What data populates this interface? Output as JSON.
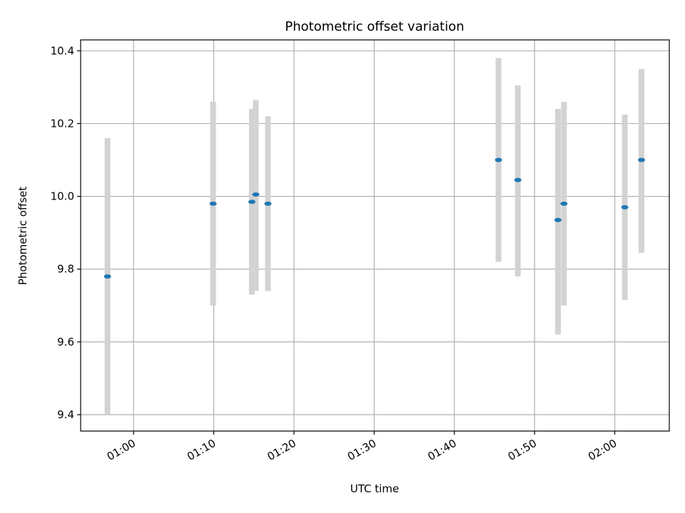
{
  "chart_data": {
    "type": "scatter",
    "title": "Photometric offset variation",
    "xlabel": "UTC time",
    "ylabel": "Photometric offset",
    "x_ticks": [
      "01:00",
      "01:10",
      "01:20",
      "01:30",
      "01:40",
      "01:50",
      "02:00"
    ],
    "y_ticks": [
      "9.4",
      "9.6",
      "9.8",
      "10.0",
      "10.2",
      "10.4"
    ],
    "xlim": [
      "00:53:24",
      "02:06:48"
    ],
    "ylim": [
      9.355,
      10.43
    ],
    "grid": true,
    "legend": "none",
    "colors": {
      "point": "#1f77b4",
      "errorbar": "#d3d3d3",
      "grid": "#b0b0b0"
    },
    "series": [
      {
        "points": [
          {
            "x": "00:56:45",
            "y": 9.78,
            "err_low": 9.4,
            "err_high": 10.16
          },
          {
            "x": "01:09:55",
            "y": 9.98,
            "err_low": 9.7,
            "err_high": 10.26
          },
          {
            "x": "01:14:45",
            "y": 9.985,
            "err_low": 9.73,
            "err_high": 10.24
          },
          {
            "x": "01:15:15",
            "y": 10.005,
            "err_low": 9.74,
            "err_high": 10.265
          },
          {
            "x": "01:16:45",
            "y": 9.98,
            "err_low": 9.74,
            "err_high": 10.22
          },
          {
            "x": "01:45:30",
            "y": 10.1,
            "err_low": 9.82,
            "err_high": 10.38
          },
          {
            "x": "01:47:55",
            "y": 10.045,
            "err_low": 9.78,
            "err_high": 10.305
          },
          {
            "x": "01:52:55",
            "y": 9.935,
            "err_low": 9.62,
            "err_high": 10.24
          },
          {
            "x": "01:53:40",
            "y": 9.98,
            "err_low": 9.7,
            "err_high": 10.26
          },
          {
            "x": "02:01:15",
            "y": 9.97,
            "err_low": 9.715,
            "err_high": 10.225
          },
          {
            "x": "02:03:20",
            "y": 10.1,
            "err_low": 9.845,
            "err_high": 10.35
          }
        ]
      }
    ]
  }
}
